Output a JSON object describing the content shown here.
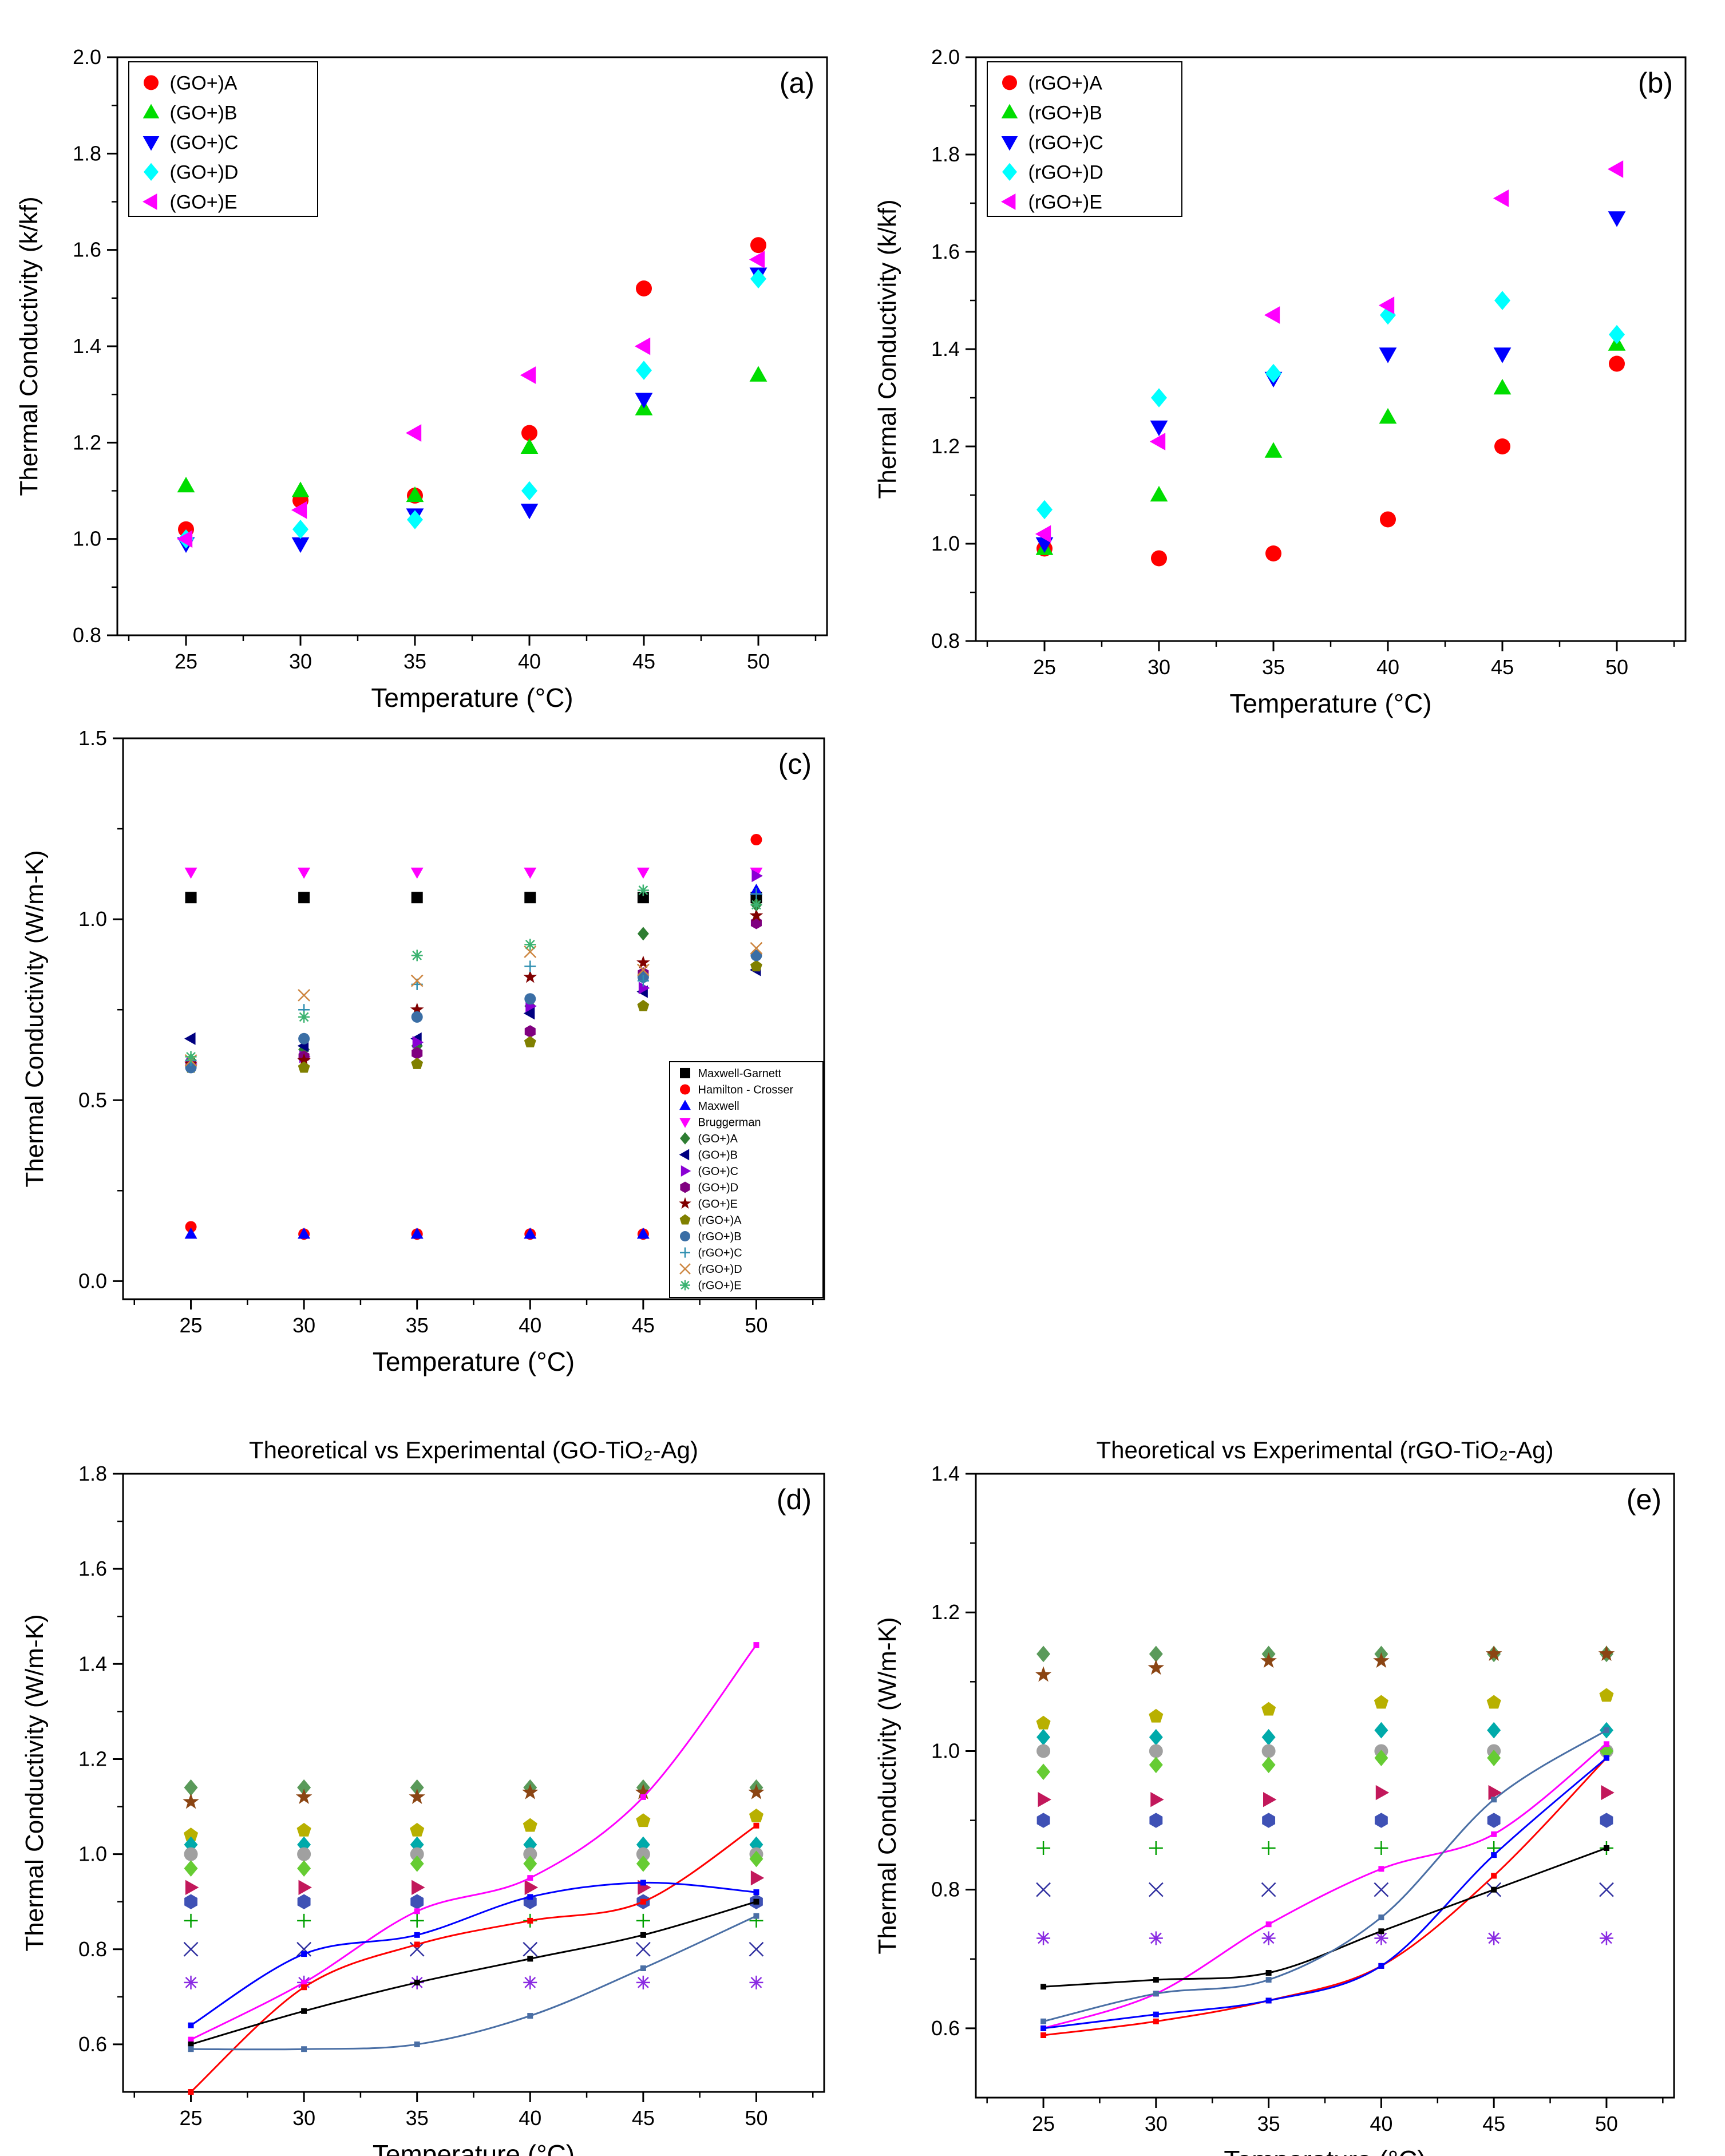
{
  "colors": {
    "red": "#ff0000",
    "green": "#00dd00",
    "blue": "#0000ff",
    "cyan": "#00ffff",
    "magenta": "#ff00ff",
    "black": "#000000",
    "darkgreen": "#2e7d32",
    "navy": "#000080",
    "violet": "#8a00d4",
    "purple": "#800080",
    "darkred": "#800000",
    "olive": "#808000",
    "steelblue": "#3a6ea5",
    "teal": "#2f8fb0",
    "peru": "#cd853f",
    "seagreen": "#3cb371",
    "slateblue": "#4a6fa5",
    "gray": "#888888"
  },
  "chart_data": [
    {
      "id": "a",
      "type": "scatter",
      "panel_label": "(a)",
      "title": "",
      "xlabel": "Temperature (°C)",
      "ylabel": "Thermal Conductivity (k/kf)",
      "xlim": [
        22,
        53
      ],
      "ylim": [
        0.8,
        2.0
      ],
      "xticks": [
        25,
        30,
        35,
        40,
        45,
        50
      ],
      "yticks": [
        0.8,
        1.0,
        1.2,
        1.4,
        1.6,
        1.8,
        2.0
      ],
      "x": [
        25,
        30,
        35,
        40,
        45,
        50
      ],
      "legend_position": "top-left",
      "series": [
        {
          "name": "(GO+)A",
          "marker": "circle",
          "color": "#ff0000",
          "values": [
            1.02,
            1.08,
            1.09,
            1.22,
            1.52,
            1.61
          ]
        },
        {
          "name": "(GO+)B",
          "marker": "triangle-up",
          "color": "#00dd00",
          "values": [
            1.11,
            1.1,
            1.09,
            1.19,
            1.27,
            1.34
          ]
        },
        {
          "name": "(GO+)C",
          "marker": "triangle-down",
          "color": "#0000ff",
          "values": [
            0.99,
            0.99,
            1.05,
            1.06,
            1.29,
            1.55
          ]
        },
        {
          "name": "(GO+)D",
          "marker": "diamond",
          "color": "#00ffff",
          "values": [
            1.0,
            1.02,
            1.04,
            1.1,
            1.35,
            1.54
          ]
        },
        {
          "name": "(GO+)E",
          "marker": "triangle-left",
          "color": "#ff00ff",
          "values": [
            1.0,
            1.06,
            1.22,
            1.34,
            1.4,
            1.58
          ]
        }
      ]
    },
    {
      "id": "b",
      "type": "scatter",
      "panel_label": "(b)",
      "title": "",
      "xlabel": "Temperature (°C)",
      "ylabel": "Thermal Conductivity (k/kf)",
      "xlim": [
        22,
        53
      ],
      "ylim": [
        0.8,
        2.0
      ],
      "xticks": [
        25,
        30,
        35,
        40,
        45,
        50
      ],
      "yticks": [
        0.8,
        1.0,
        1.2,
        1.4,
        1.6,
        1.8,
        2.0
      ],
      "x": [
        25,
        30,
        35,
        40,
        45,
        50
      ],
      "legend_position": "top-left",
      "series": [
        {
          "name": "(rGO+)A",
          "marker": "circle",
          "color": "#ff0000",
          "values": [
            0.99,
            0.97,
            0.98,
            1.05,
            1.2,
            1.37
          ]
        },
        {
          "name": "(rGO+)B",
          "marker": "triangle-up",
          "color": "#00dd00",
          "values": [
            0.99,
            1.1,
            1.19,
            1.26,
            1.32,
            1.41
          ]
        },
        {
          "name": "(rGO+)C",
          "marker": "triangle-down",
          "color": "#0000ff",
          "values": [
            1.0,
            1.24,
            1.34,
            1.39,
            1.39,
            1.67
          ]
        },
        {
          "name": "(rGO+)D",
          "marker": "diamond",
          "color": "#00ffff",
          "values": [
            1.07,
            1.3,
            1.35,
            1.47,
            1.5,
            1.43
          ]
        },
        {
          "name": "(rGO+)E",
          "marker": "triangle-left",
          "color": "#ff00ff",
          "values": [
            1.02,
            1.21,
            1.47,
            1.49,
            1.71,
            1.77
          ]
        }
      ]
    },
    {
      "id": "c",
      "type": "scatter",
      "panel_label": "(c)",
      "title": "",
      "xlabel": "Temperature (°C)",
      "ylabel": "Thermal Conductivity (W/m-K)",
      "xlim": [
        22,
        53
      ],
      "ylim": [
        -0.05,
        1.5
      ],
      "xticks": [
        25,
        30,
        35,
        40,
        45,
        50
      ],
      "yticks": [
        0.0,
        0.5,
        1.0,
        1.5
      ],
      "x": [
        25,
        30,
        35,
        40,
        45,
        50
      ],
      "legend_position": "bottom-right",
      "series": [
        {
          "name": "Maxwell-Garnett",
          "marker": "square",
          "color": "#000000",
          "values": [
            1.06,
            1.06,
            1.06,
            1.06,
            1.06,
            1.06
          ]
        },
        {
          "name": "Hamilton - Crosser",
          "marker": "circle",
          "color": "#ff0000",
          "values": [
            0.15,
            0.13,
            0.13,
            0.13,
            0.13,
            1.22
          ]
        },
        {
          "name": "Maxwell",
          "marker": "triangle-up",
          "color": "#0000ff",
          "values": [
            0.13,
            0.13,
            0.13,
            0.13,
            0.13,
            1.08
          ]
        },
        {
          "name": "Bruggerman",
          "marker": "triangle-down",
          "color": "#ff00ff",
          "values": [
            1.13,
            1.13,
            1.13,
            1.13,
            1.13,
            1.13
          ]
        },
        {
          "name": "(GO+)A",
          "marker": "diamond",
          "color": "#2e7d32",
          "values": [
            0.61,
            0.64,
            0.65,
            0.76,
            0.96,
            1.04
          ]
        },
        {
          "name": "(GO+)B",
          "marker": "triangle-left",
          "color": "#000080",
          "values": [
            0.67,
            0.65,
            0.67,
            0.74,
            0.8,
            0.86
          ]
        },
        {
          "name": "(GO+)C",
          "marker": "triangle-right",
          "color": "#8a00d4",
          "values": [
            0.6,
            0.62,
            0.66,
            0.76,
            0.81,
            1.12
          ]
        },
        {
          "name": "(GO+)D",
          "marker": "hexagon",
          "color": "#800080",
          "values": [
            0.6,
            0.62,
            0.63,
            0.69,
            0.85,
            0.99
          ]
        },
        {
          "name": "(GO+)E",
          "marker": "star",
          "color": "#800000",
          "values": [
            0.6,
            0.61,
            0.75,
            0.84,
            0.88,
            1.01
          ]
        },
        {
          "name": "(rGO+)A",
          "marker": "pentagon",
          "color": "#808000",
          "values": [
            0.59,
            0.59,
            0.6,
            0.66,
            0.76,
            0.87
          ]
        },
        {
          "name": "(rGO+)B",
          "marker": "sphere",
          "color": "#3a6ea5",
          "values": [
            0.59,
            0.67,
            0.73,
            0.78,
            0.84,
            0.9
          ]
        },
        {
          "name": "(rGO+)C",
          "marker": "plus",
          "color": "#2f8fb0",
          "values": [
            0.61,
            0.75,
            0.82,
            0.87,
            0.83,
            1.07
          ]
        },
        {
          "name": "(rGO+)D",
          "marker": "cross",
          "color": "#cd853f",
          "values": [
            0.61,
            0.79,
            0.83,
            0.91,
            0.86,
            0.92
          ]
        },
        {
          "name": "(rGO+)E",
          "marker": "asterisk",
          "color": "#3cb371",
          "values": [
            0.62,
            0.73,
            0.9,
            0.93,
            1.08,
            1.04
          ]
        }
      ]
    },
    {
      "id": "d",
      "type": "scatter",
      "panel_label": "(d)",
      "title": "Theoretical vs Experimental (GO-TiO₂-Ag)",
      "xlabel": "Temperature (°C)",
      "ylabel": "Thermal Conductivity (W/m-K)",
      "xlim": [
        22,
        53
      ],
      "ylim": [
        0.5,
        1.8
      ],
      "xticks": [
        25,
        30,
        35,
        40,
        45,
        50
      ],
      "yticks": [
        0.6,
        0.8,
        1.0,
        1.2,
        1.4,
        1.6,
        1.8
      ],
      "x": [
        25,
        30,
        35,
        40,
        45,
        50
      ],
      "fit_curves": [
        {
          "name": "fit-magenta",
          "color": "#ff00ff",
          "points": [
            [
              25,
              0.61
            ],
            [
              30,
              0.73
            ],
            [
              35,
              0.88
            ],
            [
              40,
              0.95
            ],
            [
              45,
              1.12
            ],
            [
              50,
              1.44
            ]
          ]
        },
        {
          "name": "fit-red",
          "color": "#ff0000",
          "points": [
            [
              25,
              0.5
            ],
            [
              30,
              0.72
            ],
            [
              35,
              0.81
            ],
            [
              40,
              0.86
            ],
            [
              45,
              0.9
            ],
            [
              50,
              1.06
            ]
          ]
        },
        {
          "name": "fit-blue",
          "color": "#0000ff",
          "points": [
            [
              25,
              0.64
            ],
            [
              30,
              0.79
            ],
            [
              35,
              0.83
            ],
            [
              40,
              0.91
            ],
            [
              45,
              0.94
            ],
            [
              50,
              0.92
            ]
          ]
        },
        {
          "name": "fit-black",
          "color": "#000000",
          "points": [
            [
              25,
              0.6
            ],
            [
              30,
              0.67
            ],
            [
              35,
              0.73
            ],
            [
              40,
              0.78
            ],
            [
              45,
              0.83
            ],
            [
              50,
              0.9
            ]
          ]
        },
        {
          "name": "fit-steel",
          "color": "#4a6fa5",
          "points": [
            [
              25,
              0.59
            ],
            [
              30,
              0.59
            ],
            [
              35,
              0.6
            ],
            [
              40,
              0.66
            ],
            [
              45,
              0.76
            ],
            [
              50,
              0.87
            ]
          ]
        }
      ],
      "bands": [
        {
          "marker": "diamond",
          "color": "#5a9a5a",
          "values": [
            1.14,
            1.14,
            1.14,
            1.14,
            1.14,
            1.14
          ]
        },
        {
          "marker": "star",
          "color": "#8b4513",
          "values": [
            1.11,
            1.12,
            1.12,
            1.13,
            1.13,
            1.13
          ]
        },
        {
          "marker": "pentagon",
          "color": "#b8b000",
          "values": [
            1.04,
            1.05,
            1.05,
            1.06,
            1.07,
            1.08
          ]
        },
        {
          "marker": "diamond",
          "color": "#00aaaa",
          "values": [
            1.02,
            1.02,
            1.02,
            1.02,
            1.02,
            1.02
          ]
        },
        {
          "marker": "circle",
          "color": "#a0a0a0",
          "values": [
            1.0,
            1.0,
            1.0,
            1.0,
            1.0,
            1.0
          ]
        },
        {
          "marker": "diamond",
          "color": "#66cc33",
          "values": [
            0.97,
            0.97,
            0.98,
            0.98,
            0.98,
            0.99
          ]
        },
        {
          "marker": "triangle-right",
          "color": "#c2185b",
          "values": [
            0.93,
            0.93,
            0.93,
            0.93,
            0.93,
            0.95
          ]
        },
        {
          "marker": "hexagon",
          "color": "#3f51b5",
          "values": [
            0.9,
            0.9,
            0.9,
            0.9,
            0.9,
            0.9
          ]
        },
        {
          "marker": "plus",
          "color": "#00a000",
          "values": [
            0.86,
            0.86,
            0.86,
            0.86,
            0.86,
            0.86
          ]
        },
        {
          "marker": "cross",
          "color": "#3030a0",
          "values": [
            0.8,
            0.8,
            0.8,
            0.8,
            0.8,
            0.8
          ]
        },
        {
          "marker": "asterisk",
          "color": "#8a2be2",
          "values": [
            0.73,
            0.73,
            0.73,
            0.73,
            0.73,
            0.73
          ]
        }
      ]
    },
    {
      "id": "e",
      "type": "scatter",
      "panel_label": "(e)",
      "title": "Theoretical vs Experimental (rGO-TiO₂-Ag)",
      "xlabel": "Temperature (°C)",
      "ylabel": "Thermal Conductivity (W/m-K)",
      "xlim": [
        22,
        53
      ],
      "ylim": [
        0.5,
        1.4
      ],
      "xticks": [
        25,
        30,
        35,
        40,
        45,
        50
      ],
      "yticks": [
        0.6,
        0.8,
        1.0,
        1.2,
        1.4
      ],
      "x": [
        25,
        30,
        35,
        40,
        45,
        50
      ],
      "fit_curves": [
        {
          "name": "fit-magenta",
          "color": "#ff00ff",
          "points": [
            [
              25,
              0.6
            ],
            [
              30,
              0.65
            ],
            [
              35,
              0.75
            ],
            [
              40,
              0.83
            ],
            [
              45,
              0.88
            ],
            [
              50,
              1.01
            ]
          ]
        },
        {
          "name": "fit-red",
          "color": "#ff0000",
          "points": [
            [
              25,
              0.59
            ],
            [
              30,
              0.61
            ],
            [
              35,
              0.64
            ],
            [
              40,
              0.69
            ],
            [
              45,
              0.82
            ],
            [
              50,
              0.99
            ]
          ]
        },
        {
          "name": "fit-blue",
          "color": "#0000ff",
          "points": [
            [
              25,
              0.6
            ],
            [
              30,
              0.62
            ],
            [
              35,
              0.64
            ],
            [
              40,
              0.69
            ],
            [
              45,
              0.85
            ],
            [
              50,
              0.99
            ]
          ]
        },
        {
          "name": "fit-black",
          "color": "#000000",
          "points": [
            [
              25,
              0.66
            ],
            [
              30,
              0.67
            ],
            [
              35,
              0.68
            ],
            [
              40,
              0.74
            ],
            [
              45,
              0.8
            ],
            [
              50,
              0.86
            ]
          ]
        },
        {
          "name": "fit-steel",
          "color": "#4a6fa5",
          "points": [
            [
              25,
              0.61
            ],
            [
              30,
              0.65
            ],
            [
              35,
              0.67
            ],
            [
              40,
              0.76
            ],
            [
              45,
              0.93
            ],
            [
              50,
              1.03
            ]
          ]
        }
      ],
      "bands": [
        {
          "marker": "diamond",
          "color": "#5a9a5a",
          "values": [
            1.14,
            1.14,
            1.14,
            1.14,
            1.14,
            1.14
          ]
        },
        {
          "marker": "star",
          "color": "#8b4513",
          "values": [
            1.11,
            1.12,
            1.13,
            1.13,
            1.14,
            1.14
          ]
        },
        {
          "marker": "pentagon",
          "color": "#b8b000",
          "values": [
            1.04,
            1.05,
            1.06,
            1.07,
            1.07,
            1.08
          ]
        },
        {
          "marker": "diamond",
          "color": "#00aaaa",
          "values": [
            1.02,
            1.02,
            1.02,
            1.03,
            1.03,
            1.03
          ]
        },
        {
          "marker": "circle",
          "color": "#a0a0a0",
          "values": [
            1.0,
            1.0,
            1.0,
            1.0,
            1.0,
            1.0
          ]
        },
        {
          "marker": "diamond",
          "color": "#66cc33",
          "values": [
            0.97,
            0.98,
            0.98,
            0.99,
            0.99,
            1.0
          ]
        },
        {
          "marker": "triangle-right",
          "color": "#c2185b",
          "values": [
            0.93,
            0.93,
            0.93,
            0.94,
            0.94,
            0.94
          ]
        },
        {
          "marker": "hexagon",
          "color": "#3f51b5",
          "values": [
            0.9,
            0.9,
            0.9,
            0.9,
            0.9,
            0.9
          ]
        },
        {
          "marker": "plus",
          "color": "#00a000",
          "values": [
            0.86,
            0.86,
            0.86,
            0.86,
            0.86,
            0.86
          ]
        },
        {
          "marker": "cross",
          "color": "#3030a0",
          "values": [
            0.8,
            0.8,
            0.8,
            0.8,
            0.8,
            0.8
          ]
        },
        {
          "marker": "asterisk",
          "color": "#8a2be2",
          "values": [
            0.73,
            0.73,
            0.73,
            0.73,
            0.73,
            0.73
          ]
        }
      ]
    }
  ]
}
